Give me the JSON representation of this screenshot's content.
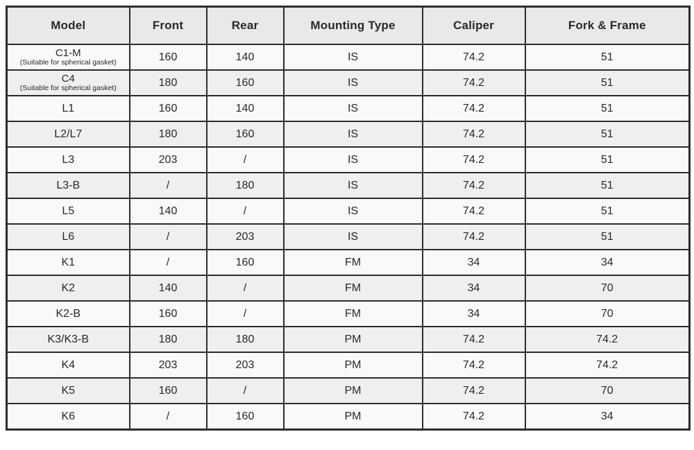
{
  "colors": {
    "border": "#2e2b2a",
    "header_bg": "#e9e9e7",
    "row_bg": "#f9f9f7",
    "row_alt_bg": "#efefed",
    "text": "#2b2826"
  },
  "table": {
    "columns": [
      "Model",
      "Front",
      "Rear",
      "Mounting Type",
      "Caliper",
      "Fork & Frame"
    ],
    "rows": [
      {
        "model": "C1-M",
        "note": "(Suitable for spherical gasket)",
        "front": "160",
        "rear": "140",
        "mounting": "IS",
        "caliper": "74.2",
        "fork_frame": "51"
      },
      {
        "model": "C4",
        "note": "(Suitable for spherical gasket)",
        "front": "180",
        "rear": "160",
        "mounting": "IS",
        "caliper": "74.2",
        "fork_frame": "51"
      },
      {
        "model": "L1",
        "note": "",
        "front": "160",
        "rear": "140",
        "mounting": "IS",
        "caliper": "74.2",
        "fork_frame": "51"
      },
      {
        "model": "L2/L7",
        "note": "",
        "front": "180",
        "rear": "160",
        "mounting": "IS",
        "caliper": "74.2",
        "fork_frame": "51"
      },
      {
        "model": "L3",
        "note": "",
        "front": "203",
        "rear": "/",
        "mounting": "IS",
        "caliper": "74.2",
        "fork_frame": "51"
      },
      {
        "model": "L3-B",
        "note": "",
        "front": "/",
        "rear": "180",
        "mounting": "IS",
        "caliper": "74.2",
        "fork_frame": "51"
      },
      {
        "model": "L5",
        "note": "",
        "front": "140",
        "rear": "/",
        "mounting": "IS",
        "caliper": "74.2",
        "fork_frame": "51"
      },
      {
        "model": "L6",
        "note": "",
        "front": "/",
        "rear": "203",
        "mounting": "IS",
        "caliper": "74.2",
        "fork_frame": "51"
      },
      {
        "model": "K1",
        "note": "",
        "front": "/",
        "rear": "160",
        "mounting": "FM",
        "caliper": "34",
        "fork_frame": "34"
      },
      {
        "model": "K2",
        "note": "",
        "front": "140",
        "rear": "/",
        "mounting": "FM",
        "caliper": "34",
        "fork_frame": "70"
      },
      {
        "model": "K2-B",
        "note": "",
        "front": "160",
        "rear": "/",
        "mounting": "FM",
        "caliper": "34",
        "fork_frame": "70"
      },
      {
        "model": "K3/K3-B",
        "note": "",
        "front": "180",
        "rear": "180",
        "mounting": "PM",
        "caliper": "74.2",
        "fork_frame": "74.2"
      },
      {
        "model": "K4",
        "note": "",
        "front": "203",
        "rear": "203",
        "mounting": "PM",
        "caliper": "74.2",
        "fork_frame": "74.2"
      },
      {
        "model": "K5",
        "note": "",
        "front": "160",
        "rear": "/",
        "mounting": "PM",
        "caliper": "74.2",
        "fork_frame": "70"
      },
      {
        "model": "K6",
        "note": "",
        "front": "/",
        "rear": "160",
        "mounting": "PM",
        "caliper": "74.2",
        "fork_frame": "34"
      }
    ]
  }
}
